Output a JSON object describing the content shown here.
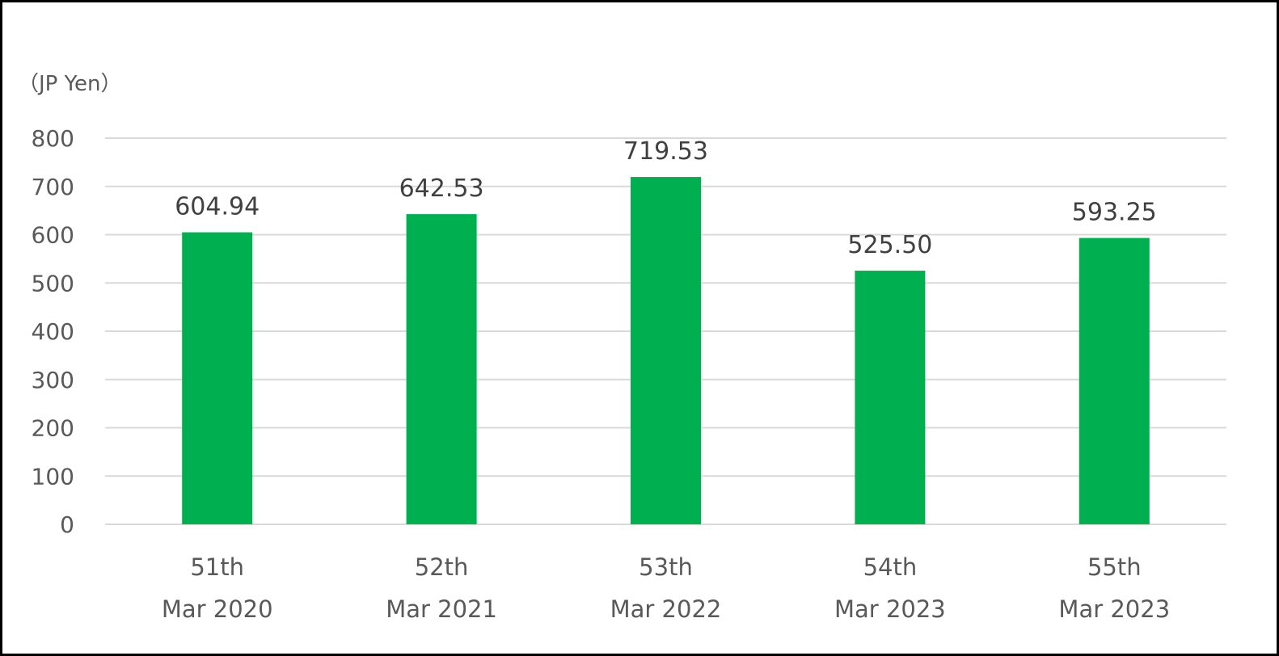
{
  "chart_data": {
    "type": "bar",
    "title": "",
    "unit_label": "（JP Yen）",
    "categories": [
      [
        "51th",
        "Mar 2020"
      ],
      [
        "52th",
        "Mar 2021"
      ],
      [
        "53th",
        "Mar 2022"
      ],
      [
        "54th",
        "Mar 2023"
      ],
      [
        "55th",
        "Mar 2023"
      ]
    ],
    "values": [
      604.94,
      642.53,
      719.53,
      525.5,
      593.25
    ],
    "data_labels": [
      "604.94",
      "642.53",
      "719.53",
      "525.50",
      "593.25"
    ],
    "ylim": [
      0,
      800
    ],
    "yticks": [
      0,
      100,
      200,
      300,
      400,
      500,
      600,
      700,
      800
    ],
    "grid": true,
    "legend": "none",
    "colors": {
      "bar": "#00B050",
      "grid": "#D9D9D9",
      "text": "#595959"
    }
  }
}
